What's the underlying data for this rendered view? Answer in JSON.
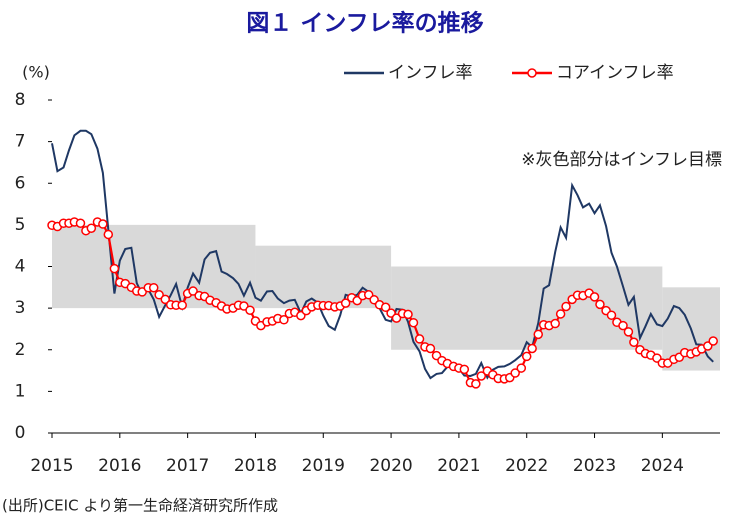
{
  "chart_data": {
    "type": "line",
    "title": "図１ インフレ率の推移",
    "y_label": "(%)",
    "annotation": "※灰色部分はインフレ目標",
    "source": "(出所)CEIC より第一生命経済研究所作成",
    "xlim": [
      2015,
      2024.85
    ],
    "xticks": [
      2015,
      2016,
      2017,
      2018,
      2019,
      2020,
      2021,
      2022,
      2023,
      2024
    ],
    "ylim": [
      0,
      8
    ],
    "yticks": [
      0,
      1,
      2,
      3,
      4,
      5,
      6,
      7,
      8
    ],
    "band": {
      "color": "#d9d9d9",
      "segments": [
        {
          "x0": 2015,
          "x1": 2018,
          "low": 3,
          "high": 5
        },
        {
          "x0": 2018,
          "x1": 2020,
          "low": 3,
          "high": 4.5
        },
        {
          "x0": 2020,
          "x1": 2024,
          "low": 2,
          "high": 4
        },
        {
          "x0": 2024,
          "x1": 2024.85,
          "low": 1.5,
          "high": 3.5
        }
      ]
    },
    "x": [
      2015.0,
      2015.08,
      2015.17,
      2015.25,
      2015.33,
      2015.42,
      2015.5,
      2015.58,
      2015.67,
      2015.75,
      2015.83,
      2015.92,
      2016.0,
      2016.08,
      2016.17,
      2016.25,
      2016.33,
      2016.42,
      2016.5,
      2016.58,
      2016.67,
      2016.75,
      2016.83,
      2016.92,
      2017.0,
      2017.08,
      2017.17,
      2017.25,
      2017.33,
      2017.42,
      2017.5,
      2017.58,
      2017.67,
      2017.75,
      2017.83,
      2017.92,
      2018.0,
      2018.08,
      2018.17,
      2018.25,
      2018.33,
      2018.42,
      2018.5,
      2018.58,
      2018.67,
      2018.75,
      2018.83,
      2018.92,
      2019.0,
      2019.08,
      2019.17,
      2019.25,
      2019.33,
      2019.42,
      2019.5,
      2019.58,
      2019.67,
      2019.75,
      2019.83,
      2019.92,
      2020.0,
      2020.08,
      2020.17,
      2020.25,
      2020.33,
      2020.42,
      2020.5,
      2020.58,
      2020.67,
      2020.75,
      2020.83,
      2020.92,
      2021.0,
      2021.08,
      2021.17,
      2021.25,
      2021.33,
      2021.42,
      2021.5,
      2021.58,
      2021.67,
      2021.75,
      2021.83,
      2021.92,
      2022.0,
      2022.08,
      2022.17,
      2022.25,
      2022.33,
      2022.42,
      2022.5,
      2022.58,
      2022.67,
      2022.75,
      2022.83,
      2022.92,
      2023.0,
      2023.08,
      2023.17,
      2023.25,
      2023.33,
      2023.42,
      2023.5,
      2023.58,
      2023.67,
      2023.75,
      2023.83,
      2023.92,
      2024.0,
      2024.08,
      2024.17,
      2024.25,
      2024.33,
      2024.42,
      2024.5,
      2024.58,
      2024.67,
      2024.75
    ],
    "series": [
      {
        "name": "インフレ率",
        "color": "#1f3864",
        "values": [
          6.96,
          6.29,
          6.38,
          6.79,
          7.15,
          7.26,
          7.26,
          7.18,
          6.83,
          6.25,
          4.89,
          3.35,
          4.14,
          4.42,
          4.45,
          3.6,
          3.33,
          3.45,
          3.21,
          2.79,
          3.07,
          3.31,
          3.58,
          3.02,
          3.49,
          3.83,
          3.61,
          4.17,
          4.33,
          4.37,
          3.88,
          3.82,
          3.72,
          3.58,
          3.3,
          3.61,
          3.25,
          3.18,
          3.4,
          3.41,
          3.23,
          3.12,
          3.18,
          3.2,
          2.88,
          3.16,
          3.23,
          3.13,
          2.82,
          2.57,
          2.48,
          2.83,
          3.32,
          3.28,
          3.32,
          3.49,
          3.39,
          3.13,
          3.0,
          2.72,
          2.68,
          2.98,
          2.96,
          2.67,
          2.19,
          1.96,
          1.54,
          1.32,
          1.42,
          1.44,
          1.59,
          1.68,
          1.55,
          1.38,
          1.37,
          1.42,
          1.68,
          1.33,
          1.52,
          1.59,
          1.6,
          1.66,
          1.75,
          1.87,
          2.18,
          2.06,
          2.64,
          3.47,
          3.55,
          4.35,
          4.94,
          4.69,
          5.95,
          5.71,
          5.42,
          5.51,
          5.28,
          5.47,
          4.97,
          4.33,
          4.0,
          3.52,
          3.08,
          3.27,
          2.28,
          2.56,
          2.86,
          2.61,
          2.57,
          2.75,
          3.05,
          3.0,
          2.84,
          2.51,
          2.13,
          2.12,
          1.84,
          1.71
        ]
      },
      {
        "name": "コアインフレ率",
        "color": "#ff0000",
        "marker": "circle",
        "values": [
          4.99,
          4.96,
          5.04,
          5.04,
          5.07,
          5.04,
          4.86,
          4.92,
          5.07,
          5.02,
          4.77,
          3.95,
          3.62,
          3.59,
          3.5,
          3.41,
          3.39,
          3.49,
          3.49,
          3.32,
          3.21,
          3.08,
          3.07,
          3.07,
          3.35,
          3.41,
          3.3,
          3.28,
          3.19,
          3.13,
          3.05,
          2.98,
          3.0,
          3.07,
          3.05,
          2.95,
          2.69,
          2.58,
          2.67,
          2.69,
          2.75,
          2.72,
          2.87,
          2.9,
          2.82,
          2.94,
          3.03,
          3.07,
          3.06,
          3.06,
          3.03,
          3.05,
          3.12,
          3.25,
          3.18,
          3.3,
          3.32,
          3.2,
          3.08,
          3.02,
          2.88,
          2.76,
          2.87,
          2.85,
          2.65,
          2.26,
          2.07,
          2.03,
          1.86,
          1.74,
          1.67,
          1.6,
          1.56,
          1.53,
          1.21,
          1.18,
          1.37,
          1.49,
          1.4,
          1.31,
          1.3,
          1.33,
          1.44,
          1.56,
          1.84,
          2.03,
          2.37,
          2.6,
          2.58,
          2.63,
          2.86,
          3.04,
          3.21,
          3.31,
          3.3,
          3.36,
          3.27,
          3.09,
          2.94,
          2.83,
          2.66,
          2.58,
          2.43,
          2.18,
          2.0,
          1.91,
          1.87,
          1.8,
          1.68,
          1.68,
          1.77,
          1.82,
          1.93,
          1.9,
          1.95,
          2.02,
          2.09,
          2.21
        ]
      }
    ]
  }
}
